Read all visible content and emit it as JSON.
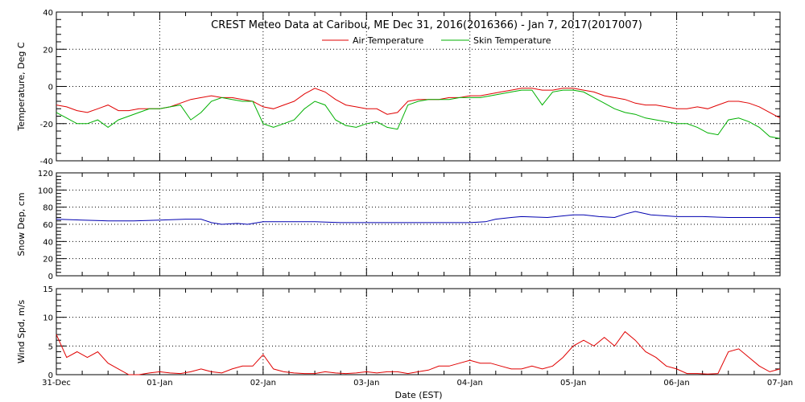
{
  "title": "CREST Meteo Data at Caribou, ME   Dec 31, 2016(2016366) - Jan  7, 2017(2017007)",
  "xlabel": "Date (EST)",
  "x_ticks": [
    "31-Dec",
    "01-Jan",
    "02-Jan",
    "03-Jan",
    "04-Jan",
    "05-Jan",
    "06-Jan",
    "07-Jan"
  ],
  "colors": {
    "air": "#e00000",
    "skin": "#00b000",
    "snow": "#0000b0",
    "wind": "#e00000"
  },
  "chart_data": [
    {
      "type": "line",
      "ylabel": "Temperature, Deg C",
      "xlim": [
        0,
        7
      ],
      "ylim": [
        -40,
        40
      ],
      "y_ticks": [
        -40,
        -20,
        0,
        20,
        40
      ],
      "grid": true,
      "legend": "top",
      "series": [
        {
          "name": "Air Temperature",
          "x": [
            0,
            0.1,
            0.2,
            0.3,
            0.4,
            0.5,
            0.6,
            0.7,
            0.8,
            0.9,
            1.0,
            1.1,
            1.2,
            1.3,
            1.4,
            1.5,
            1.6,
            1.7,
            1.8,
            1.9,
            2.0,
            2.1,
            2.2,
            2.3,
            2.4,
            2.5,
            2.6,
            2.7,
            2.8,
            2.9,
            3.0,
            3.1,
            3.2,
            3.3,
            3.4,
            3.5,
            3.6,
            3.7,
            3.8,
            3.9,
            4.0,
            4.1,
            4.2,
            4.3,
            4.4,
            4.5,
            4.6,
            4.7,
            4.8,
            4.9,
            5.0,
            5.1,
            5.2,
            5.3,
            5.4,
            5.5,
            5.6,
            5.7,
            5.8,
            5.9,
            6.0,
            6.1,
            6.2,
            6.3,
            6.4,
            6.5,
            6.6,
            6.7,
            6.8,
            6.9,
            7.0
          ],
          "values": [
            -10,
            -11,
            -13,
            -14,
            -12,
            -10,
            -13,
            -13,
            -12,
            -12,
            -12,
            -11,
            -9,
            -7,
            -6,
            -5,
            -6,
            -6,
            -7,
            -8,
            -11,
            -12,
            -10,
            -8,
            -4,
            -1,
            -3,
            -7,
            -10,
            -11,
            -12,
            -12,
            -15,
            -14,
            -8,
            -7,
            -7,
            -7,
            -6,
            -6,
            -5,
            -5,
            -4,
            -3,
            -2,
            -1,
            -1,
            -2,
            -2,
            -1,
            -1,
            -2,
            -3,
            -5,
            -6,
            -7,
            -9,
            -10,
            -10,
            -11,
            -12,
            -12,
            -11,
            -12,
            -10,
            -8,
            -8,
            -9,
            -11,
            -14,
            -17
          ]
        },
        {
          "name": "Skin Temperature",
          "x": [
            0,
            0.1,
            0.2,
            0.3,
            0.4,
            0.5,
            0.6,
            0.7,
            0.8,
            0.9,
            1.0,
            1.1,
            1.2,
            1.3,
            1.4,
            1.5,
            1.6,
            1.7,
            1.8,
            1.9,
            2.0,
            2.1,
            2.2,
            2.3,
            2.4,
            2.5,
            2.6,
            2.7,
            2.8,
            2.9,
            3.0,
            3.1,
            3.2,
            3.3,
            3.4,
            3.5,
            3.6,
            3.7,
            3.8,
            3.9,
            4.0,
            4.1,
            4.2,
            4.3,
            4.4,
            4.5,
            4.6,
            4.7,
            4.8,
            4.9,
            5.0,
            5.1,
            5.2,
            5.3,
            5.4,
            5.5,
            5.6,
            5.7,
            5.8,
            5.9,
            6.0,
            6.1,
            6.2,
            6.3,
            6.4,
            6.5,
            6.6,
            6.7,
            6.8,
            6.9,
            7.0
          ],
          "values": [
            -14,
            -17,
            -20,
            -20,
            -18,
            -22,
            -18,
            -16,
            -14,
            -12,
            -12,
            -11,
            -10,
            -18,
            -14,
            -8,
            -6,
            -7,
            -8,
            -8,
            -20,
            -22,
            -20,
            -18,
            -12,
            -8,
            -10,
            -18,
            -21,
            -22,
            -20,
            -19,
            -22,
            -23,
            -10,
            -8,
            -7,
            -7,
            -7,
            -6,
            -6,
            -6,
            -5,
            -4,
            -3,
            -2,
            -2,
            -10,
            -3,
            -2,
            -2,
            -3,
            -6,
            -9,
            -12,
            -14,
            -15,
            -17,
            -18,
            -19,
            -20,
            -20,
            -22,
            -25,
            -26,
            -18,
            -17,
            -19,
            -22,
            -27,
            -28
          ]
        }
      ]
    },
    {
      "type": "line",
      "ylabel": "Snow Dep, cm",
      "xlim": [
        0,
        7
      ],
      "ylim": [
        0,
        120
      ],
      "y_ticks": [
        0,
        20,
        40,
        60,
        80,
        100,
        120
      ],
      "grid": true,
      "series": [
        {
          "x": [
            0,
            0.25,
            0.5,
            0.75,
            1.0,
            1.25,
            1.4,
            1.5,
            1.6,
            1.75,
            1.85,
            2.0,
            2.25,
            2.5,
            2.75,
            3.0,
            3.25,
            3.5,
            3.75,
            4.0,
            4.15,
            4.25,
            4.4,
            4.5,
            4.75,
            5.0,
            5.1,
            5.25,
            5.4,
            5.5,
            5.6,
            5.75,
            6.0,
            6.25,
            6.5,
            6.75,
            7.0
          ],
          "values": [
            66,
            65,
            64,
            64,
            65,
            66,
            66,
            62,
            60,
            61,
            60,
            63,
            63,
            63,
            62,
            62,
            62,
            62,
            62,
            62,
            63,
            66,
            68,
            69,
            68,
            71,
            71,
            69,
            68,
            72,
            75,
            71,
            69,
            69,
            68,
            68,
            68
          ]
        }
      ]
    },
    {
      "type": "line",
      "ylabel": "Wind Spd, m/s",
      "xlim": [
        0,
        7
      ],
      "ylim": [
        0,
        15
      ],
      "y_ticks": [
        0,
        5,
        10,
        15
      ],
      "grid": true,
      "series": [
        {
          "x": [
            0,
            0.05,
            0.1,
            0.2,
            0.3,
            0.4,
            0.5,
            0.6,
            0.7,
            0.8,
            0.9,
            1.0,
            1.1,
            1.2,
            1.3,
            1.4,
            1.5,
            1.6,
            1.7,
            1.8,
            1.9,
            2.0,
            2.1,
            2.2,
            2.3,
            2.4,
            2.5,
            2.6,
            2.7,
            2.8,
            2.9,
            3.0,
            3.1,
            3.2,
            3.3,
            3.4,
            3.5,
            3.6,
            3.7,
            3.8,
            3.9,
            4.0,
            4.1,
            4.2,
            4.3,
            4.4,
            4.5,
            4.6,
            4.7,
            4.8,
            4.9,
            5.0,
            5.1,
            5.2,
            5.3,
            5.4,
            5.5,
            5.6,
            5.7,
            5.8,
            5.9,
            6.0,
            6.1,
            6.2,
            6.3,
            6.4,
            6.5,
            6.6,
            6.7,
            6.8,
            6.9,
            7.0
          ],
          "values": [
            7,
            5,
            3,
            4,
            3,
            4,
            2,
            1,
            0,
            0,
            0.3,
            0.5,
            0.3,
            0.2,
            0.5,
            1,
            0.5,
            0.3,
            1,
            1.5,
            1.5,
            3.5,
            1,
            0.5,
            0.3,
            0.2,
            0.2,
            0.5,
            0.3,
            0.2,
            0.3,
            0.5,
            0.3,
            0.5,
            0.5,
            0.2,
            0.5,
            0.8,
            1.5,
            1.5,
            2,
            2.5,
            2,
            2,
            1.5,
            1,
            1,
            1.5,
            1,
            1.5,
            3,
            5,
            6,
            5,
            6.5,
            5,
            7.5,
            6,
            4,
            3,
            1.5,
            1,
            0.2,
            0.2,
            0.1,
            0.2,
            4,
            4.5,
            3,
            1.5,
            0.5,
            1
          ]
        }
      ]
    }
  ]
}
